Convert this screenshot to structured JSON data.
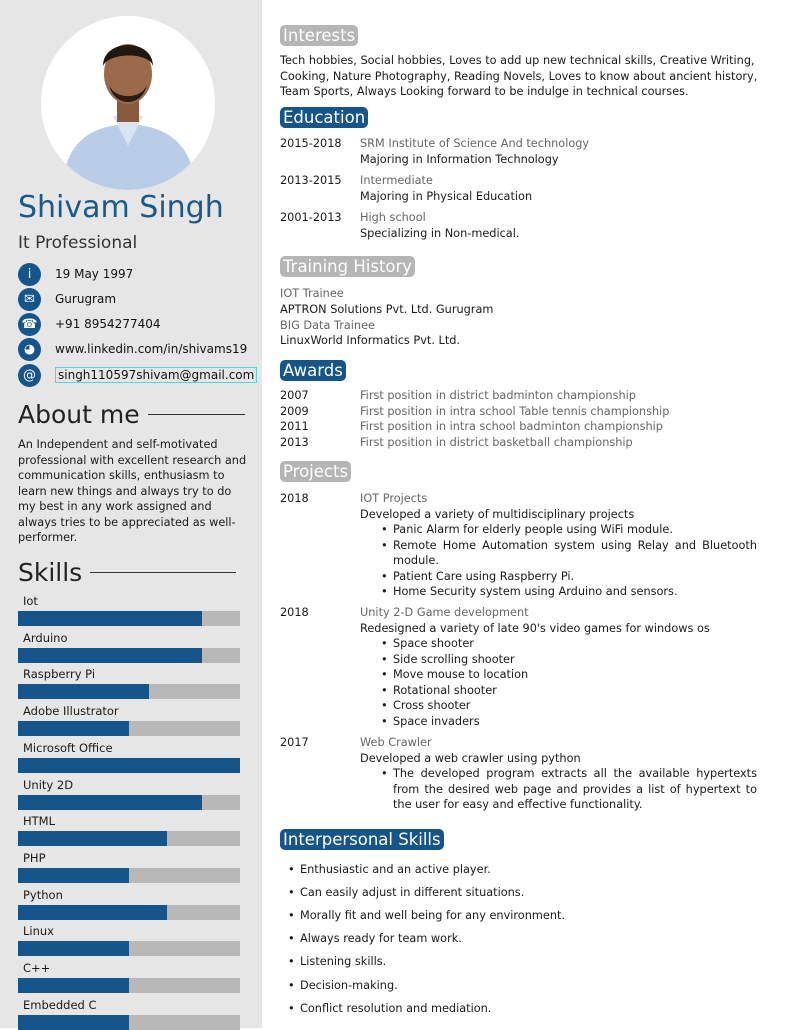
{
  "sidebar": {
    "name": "Shivam Singh",
    "title": "It Professional",
    "contacts": [
      {
        "icon": "info-icon",
        "glyph": "i",
        "text": "19 May 1997"
      },
      {
        "icon": "envelope-icon",
        "glyph": "✉",
        "text": "Gurugram"
      },
      {
        "icon": "phone-icon",
        "glyph": "☎",
        "text": "+91 8954277404"
      },
      {
        "icon": "globe-icon",
        "glyph": "◕",
        "text": "www.linkedin.com/in/shivams19"
      },
      {
        "icon": "at-icon",
        "glyph": "@",
        "text": "singh110597shivam@gmail.com"
      }
    ],
    "about_heading": "About me",
    "about_text": "An Independent and self-motivated professional with excellent research and communication skills, enthusiasm to learn new things and always try to do my best in any work assigned and always tries to be appreciated as well-performer.",
    "skills_heading": "Skills",
    "skills": [
      {
        "label": "Iot",
        "level": 0.83
      },
      {
        "label": "Arduino",
        "level": 0.83
      },
      {
        "label": "Raspberry Pi",
        "level": 0.59
      },
      {
        "label": "Adobe Illustrator",
        "level": 0.5
      },
      {
        "label": "Microsoft Office",
        "level": 1.0
      },
      {
        "label": "Unity 2D",
        "level": 0.83
      },
      {
        "label": "HTML",
        "level": 0.67
      },
      {
        "label": "PHP",
        "level": 0.5
      },
      {
        "label": "Python",
        "level": 0.67
      },
      {
        "label": "Linux",
        "level": 0.5
      },
      {
        "label": "C++",
        "level": 0.5
      },
      {
        "label": "Embedded C",
        "level": 0.5
      }
    ]
  },
  "colors": {
    "accent": "#15558a",
    "name": "#1a5a8a",
    "sidebar_bg": "#e6e6e6",
    "bar_bg": "#b8b8b8",
    "gray_header": "#b5b5b5"
  },
  "interests": {
    "heading": "Interests",
    "lines": [
      "Tech hobbies, Social hobbies, Loves to add up new technical skills, Creative Writing,",
      "Cooking, Nature Photography, Reading Novels, Loves to know about ancient history,",
      "Team Sports, Always Looking forward to be indulge in technical courses."
    ]
  },
  "education": {
    "heading": "Education",
    "items": [
      {
        "years": "2015-2018",
        "school": "SRM Institute of Science And technology",
        "detail": "Majoring in Information Technology"
      },
      {
        "years": "2013-2015",
        "school": "Intermediate",
        "detail": "Majoring in Physical Education"
      },
      {
        "years": "2001-2013",
        "school": "High school",
        "detail": "Specializing in Non-medical."
      }
    ]
  },
  "training": {
    "heading": "Training History",
    "lines": [
      "IOT Trainee",
      "APTRON Solutions Pvt. Ltd. Gurugram",
      "BIG Data Trainee",
      "LinuxWorld Informatics Pvt. Ltd."
    ]
  },
  "awards": {
    "heading": "Awards",
    "items": [
      {
        "year": "2007",
        "text": "First position in district badminton championship"
      },
      {
        "year": "2009",
        "text": "First position in intra school Table tennis championship"
      },
      {
        "year": "2011",
        "text": "First position in intra school badminton championship"
      },
      {
        "year": "2013",
        "text": "First position in district basketball championship"
      }
    ]
  },
  "projects": {
    "heading": "Projects",
    "items": [
      {
        "year": "2018",
        "title": "IOT Projects",
        "desc": "Developed a variety of multidisciplinary projects",
        "bullets": [
          "Panic Alarm for elderly people using WiFi module.",
          "Remote Home Automation system using Relay and Bluetooth module.",
          "Patient Care using Raspberry Pi.",
          "Home Security system using Arduino and sensors."
        ]
      },
      {
        "year": "2018",
        "title": "Unity 2-D Game development",
        "desc": "Redesigned a variety of late 90's video games for windows os",
        "bullets": [
          "Space shooter",
          "Side scrolling shooter",
          "Move mouse to location",
          "Rotational shooter",
          "Cross shooter",
          "Space invaders"
        ]
      },
      {
        "year": "2017",
        "title": "Web Crawler",
        "desc": "Developed a web crawler using python",
        "bullets": [
          "The developed program extracts all the available hypertexts from the desired web page and provides a list of hypertext to the user for easy and effective functionality."
        ]
      }
    ]
  },
  "interpersonal": {
    "heading": "Interpersonal Skills",
    "items": [
      "Enthusiastic and an active player.",
      "Can easily adjust in different situations.",
      "Morally fit and well being for any environment.",
      "Always ready for team work.",
      "Listening skills.",
      "Decision-making.",
      "Conflict resolution and mediation."
    ]
  }
}
